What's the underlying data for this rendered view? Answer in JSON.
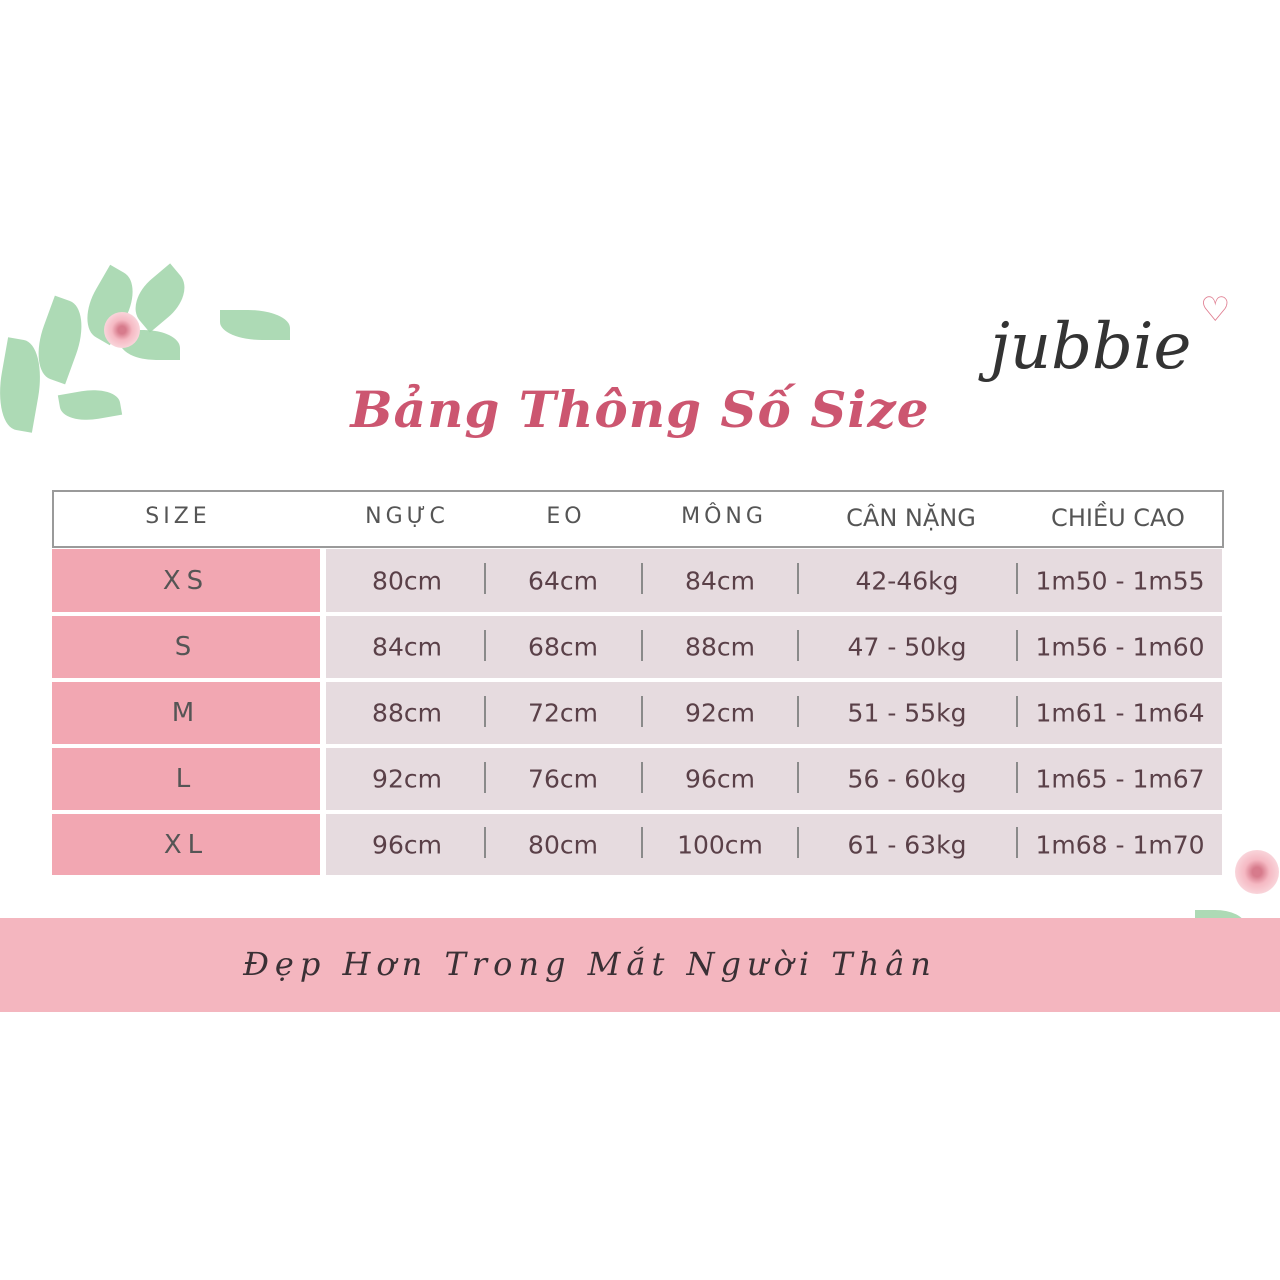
{
  "title": "Bảng Thông Số Size",
  "logo": "jubbie",
  "slogan": "Đẹp Hơn Trong Mắt Người Thân",
  "colors": {
    "title": "#cc5670",
    "size_cell": "#f2a7b2",
    "data_cell": "#e6dbdf",
    "banner": "#f4b6bf"
  },
  "table": {
    "headers": [
      "SIZE",
      "NGỰC",
      "EO",
      "MÔNG",
      "CÂN NẶNG",
      "CHIỀU CAO"
    ],
    "rows": [
      {
        "size": "XS",
        "nguc": "80cm",
        "eo": "64cm",
        "mong": "84cm",
        "can_nang": "42-46kg",
        "chieu_cao": "1m50 - 1m55"
      },
      {
        "size": "S",
        "nguc": "84cm",
        "eo": "68cm",
        "mong": "88cm",
        "can_nang": "47 - 50kg",
        "chieu_cao": "1m56 - 1m60"
      },
      {
        "size": "M",
        "nguc": "88cm",
        "eo": "72cm",
        "mong": "92cm",
        "can_nang": "51 - 55kg",
        "chieu_cao": "1m61 - 1m64"
      },
      {
        "size": "L",
        "nguc": "92cm",
        "eo": "76cm",
        "mong": "96cm",
        "can_nang": "56 - 60kg",
        "chieu_cao": "1m65 - 1m67"
      },
      {
        "size": "XL",
        "nguc": "96cm",
        "eo": "80cm",
        "mong": "100cm",
        "can_nang": "61 - 63kg",
        "chieu_cao": "1m68 - 1m70"
      }
    ]
  }
}
